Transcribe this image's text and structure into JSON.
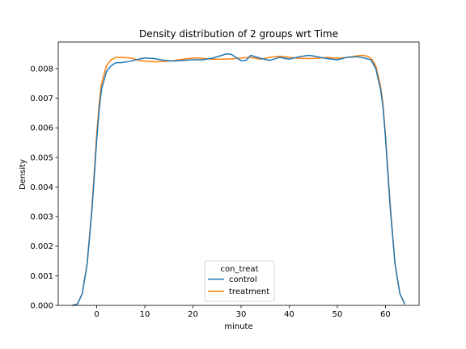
{
  "chart_data": {
    "type": "line",
    "title": "Density distribution of 2 groups wrt Time",
    "xlabel": "minute",
    "ylabel": "Density",
    "xlim": [
      -8,
      67
    ],
    "ylim": [
      0,
      0.0089
    ],
    "xticks": [
      0,
      10,
      20,
      30,
      40,
      50,
      60
    ],
    "xtick_labels": [
      "0",
      "10",
      "20",
      "30",
      "40",
      "50",
      "60"
    ],
    "yticks": [
      0,
      0.001,
      0.002,
      0.003,
      0.004,
      0.005,
      0.006,
      0.007,
      0.008
    ],
    "ytick_labels": [
      "0.000",
      "0.001",
      "0.002",
      "0.003",
      "0.004",
      "0.005",
      "0.006",
      "0.007",
      "0.008"
    ],
    "grid": false,
    "legend": {
      "title": "con_treat",
      "position": "lower-center"
    },
    "series": [
      {
        "name": "control",
        "color": "#1f77b4",
        "x": [
          -5,
          -4,
          -3,
          -2,
          -1,
          0,
          0.5,
          1,
          2,
          3,
          4,
          5,
          7,
          9,
          10,
          12,
          14,
          16,
          18,
          20,
          22,
          24,
          26,
          27,
          28,
          30,
          31,
          32,
          34,
          36,
          38,
          40,
          42,
          44,
          45,
          47,
          49,
          50,
          52,
          54,
          55,
          56,
          57,
          58,
          59,
          59.5,
          60,
          61,
          62,
          63,
          64
        ],
        "y": [
          0,
          5e-05,
          0.0004,
          0.0014,
          0.0032,
          0.0056,
          0.0066,
          0.0073,
          0.0079,
          0.0081,
          0.0082,
          0.0082,
          0.00825,
          0.00833,
          0.00836,
          0.00834,
          0.00828,
          0.00826,
          0.00828,
          0.0083,
          0.0083,
          0.00835,
          0.00845,
          0.0085,
          0.00848,
          0.00827,
          0.00828,
          0.00845,
          0.00835,
          0.00828,
          0.00838,
          0.00832,
          0.0084,
          0.00845,
          0.00843,
          0.00836,
          0.00832,
          0.0083,
          0.00838,
          0.0084,
          0.00838,
          0.00834,
          0.0083,
          0.008,
          0.0073,
          0.0067,
          0.0057,
          0.0033,
          0.0014,
          0.0004,
          5e-05
        ]
      },
      {
        "name": "treatment",
        "color": "#ff7f0e",
        "x": [
          -5,
          -4,
          -3,
          -2,
          -1,
          0,
          0.5,
          1,
          2,
          3,
          4,
          5,
          7,
          9,
          12,
          15,
          18,
          20,
          22,
          24,
          26,
          28,
          30,
          32,
          34,
          36,
          38,
          40,
          42,
          44,
          46,
          48,
          50,
          52,
          54,
          55,
          56,
          57,
          58,
          59,
          59.5,
          60,
          61,
          62,
          63,
          64
        ],
        "y": [
          0,
          5e-05,
          0.0004,
          0.0014,
          0.0033,
          0.0058,
          0.0068,
          0.0075,
          0.0081,
          0.0083,
          0.00838,
          0.00838,
          0.00836,
          0.00827,
          0.00823,
          0.00825,
          0.00832,
          0.00836,
          0.00835,
          0.00832,
          0.00832,
          0.00833,
          0.00836,
          0.00838,
          0.00832,
          0.00838,
          0.00842,
          0.00838,
          0.00835,
          0.00834,
          0.00835,
          0.00838,
          0.00835,
          0.00838,
          0.00843,
          0.00845,
          0.00843,
          0.00836,
          0.0081,
          0.0074,
          0.0068,
          0.0058,
          0.0034,
          0.0014,
          0.0004,
          5e-05
        ]
      }
    ]
  }
}
